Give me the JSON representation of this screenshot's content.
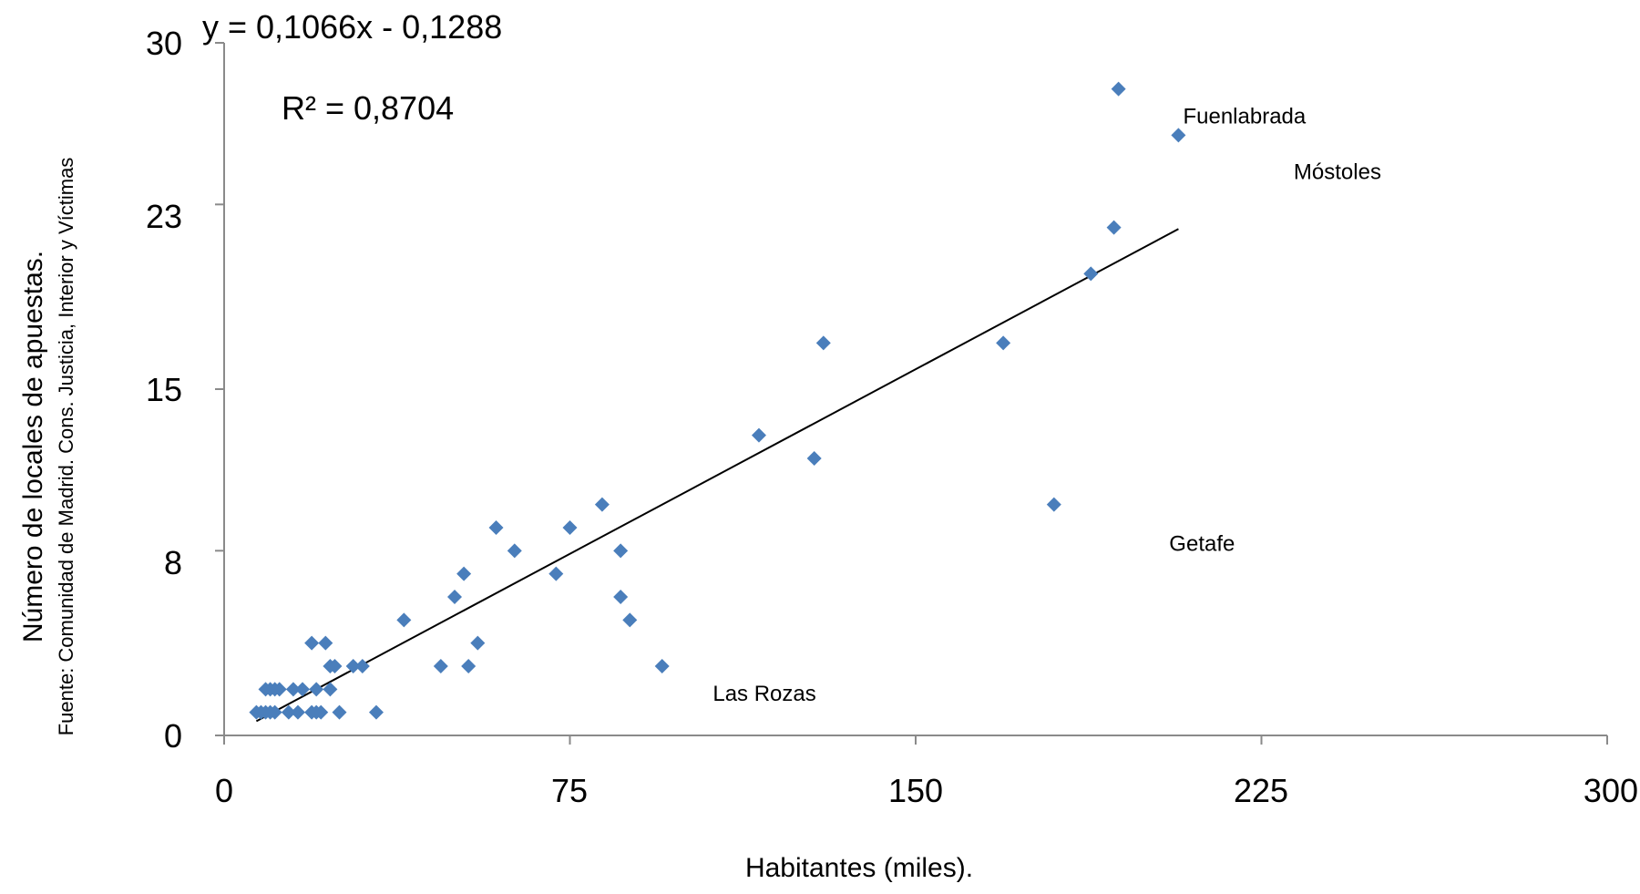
{
  "chart_data": {
    "type": "scatter",
    "xlabel": "Habitantes (miles).",
    "ylabel": "Número de locales de apuestas.",
    "ylabel_source": "Fuente:  Comunidad de Madrid. Cons. Justicia, Interior y Víctimas",
    "xlim": [
      0,
      300
    ],
    "ylim": [
      0,
      30
    ],
    "x_ticks": [
      0,
      75,
      150,
      225,
      300
    ],
    "y_ticks": [
      0,
      8,
      15,
      23,
      30
    ],
    "x_tick_labels": [
      "0",
      "75",
      "150",
      "225",
      "300"
    ],
    "y_tick_labels": [
      "0",
      "8",
      "15",
      "23",
      "30"
    ],
    "grid": false,
    "marker_color": "#4a7ebb",
    "trendline": {
      "equation": "y = 0,1066x - 0,1288",
      "r2": "R² = 0,8704",
      "slope": 0.1066,
      "intercept": -0.1288,
      "x_range": [
        7,
        207
      ]
    },
    "annotations": [
      {
        "text": "Fuenlabrada",
        "x": 208,
        "y": 26.5
      },
      {
        "text": "Móstoles",
        "x": 232,
        "y": 24.1
      },
      {
        "text": "Getafe",
        "x": 205,
        "y": 8
      },
      {
        "text": "Las Rozas",
        "x": 106,
        "y": 1.5
      }
    ],
    "points": [
      [
        7,
        1
      ],
      [
        8,
        1
      ],
      [
        9,
        1
      ],
      [
        10,
        1
      ],
      [
        11,
        1
      ],
      [
        9,
        2
      ],
      [
        10,
        2
      ],
      [
        11,
        2
      ],
      [
        12,
        2
      ],
      [
        14,
        1
      ],
      [
        15,
        2
      ],
      [
        16,
        1
      ],
      [
        17,
        2
      ],
      [
        19,
        1
      ],
      [
        20,
        1
      ],
      [
        19,
        4
      ],
      [
        20,
        2
      ],
      [
        21,
        1
      ],
      [
        22,
        4
      ],
      [
        23,
        2
      ],
      [
        23,
        3
      ],
      [
        24,
        3
      ],
      [
        25,
        1
      ],
      [
        28,
        3
      ],
      [
        30,
        3
      ],
      [
        33,
        1
      ],
      [
        39,
        5
      ],
      [
        47,
        3
      ],
      [
        50,
        6
      ],
      [
        52,
        7
      ],
      [
        53,
        3
      ],
      [
        55,
        4
      ],
      [
        59,
        9
      ],
      [
        63,
        8
      ],
      [
        72,
        7
      ],
      [
        75,
        9
      ],
      [
        82,
        10
      ],
      [
        86,
        8
      ],
      [
        86,
        6
      ],
      [
        88,
        5
      ],
      [
        95,
        3
      ],
      [
        116,
        13
      ],
      [
        128,
        12
      ],
      [
        130,
        17
      ],
      [
        169,
        17
      ],
      [
        180,
        10
      ],
      [
        188,
        20
      ],
      [
        193,
        22
      ],
      [
        194,
        28
      ],
      [
        207,
        26
      ]
    ]
  }
}
